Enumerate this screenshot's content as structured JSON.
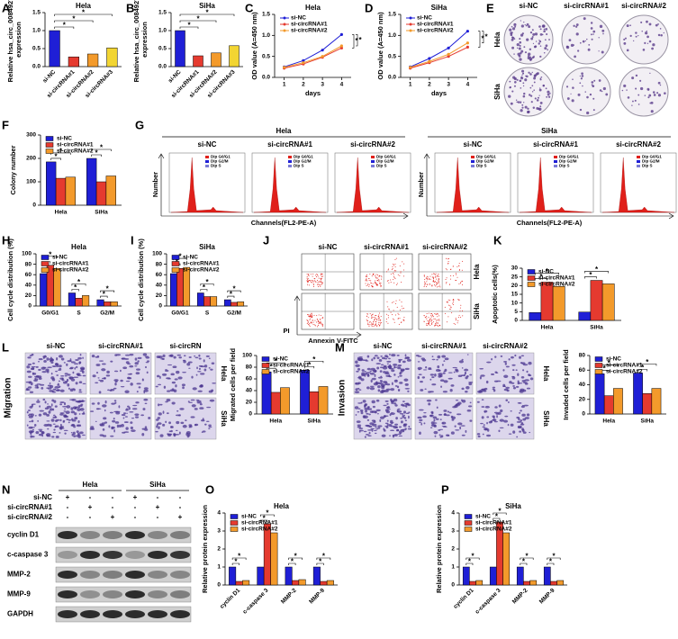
{
  "chart_data": [
    {
      "type": "bar",
      "panel": "A",
      "title": "Hela",
      "ylabel": [
        "Relative hsa_circ_0084927",
        "expression"
      ],
      "categories": [
        "si-NC",
        "si-circRNA#1",
        "si-circRNA#2",
        "si-circRNA#3"
      ],
      "values": [
        1.0,
        0.27,
        0.35,
        0.52
      ],
      "colors": [
        "#1f1fd6",
        "#e53a2f",
        "#f39a2b",
        "#f2d532"
      ],
      "ylim": [
        0,
        1.5
      ],
      "yticks": [
        {
          "value": 0,
          "label": "0.0"
        },
        {
          "value": 0.5,
          "label": "0.5"
        },
        {
          "value": 1,
          "label": "1.0"
        },
        {
          "value": 1.5,
          "label": "1.5"
        }
      ]
    },
    {
      "type": "bar",
      "panel": "B",
      "title": "SiHa",
      "ylabel": [
        "Relative hsa_circ_0084927",
        "expression"
      ],
      "categories": [
        "si-NC",
        "si-circRNA#1",
        "si-circRNA#2",
        "si-circRNA#3"
      ],
      "values": [
        1.0,
        0.3,
        0.38,
        0.58
      ],
      "colors": [
        "#1f1fd6",
        "#e53a2f",
        "#f39a2b",
        "#f2d532"
      ],
      "ylim": [
        0,
        1.5
      ],
      "yticks": [
        {
          "value": 0,
          "label": "0.0"
        },
        {
          "value": 0.5,
          "label": "0.5"
        },
        {
          "value": 1,
          "label": "1.0"
        },
        {
          "value": 1.5,
          "label": "1.5"
        }
      ]
    },
    {
      "type": "line",
      "panel": "C",
      "title": "Hela",
      "ylabel": "OD value (A=450 nm)",
      "xlabel": "days",
      "x": [
        1,
        2,
        3,
        4
      ],
      "xlim": [
        0.5,
        4.5
      ],
      "xticks": [
        1,
        2,
        3,
        4
      ],
      "ylim": [
        0,
        1.5
      ],
      "yticks": [
        {
          "value": 0,
          "label": "0.0"
        },
        {
          "value": 0.5,
          "label": "0.5"
        },
        {
          "value": 1,
          "label": "1.0"
        },
        {
          "value": 1.5,
          "label": "1.5"
        }
      ],
      "series": [
        {
          "name": "si-NC",
          "color": "#1f1fd6",
          "values": [
            0.25,
            0.4,
            0.65,
            1.02
          ]
        },
        {
          "name": "si-circRNA#1",
          "color": "#e53a2f",
          "values": [
            0.22,
            0.32,
            0.48,
            0.7
          ]
        },
        {
          "name": "si-circRNA#2",
          "color": "#f39a2b",
          "values": [
            0.24,
            0.35,
            0.5,
            0.75
          ]
        }
      ]
    },
    {
      "type": "line",
      "panel": "D",
      "title": "SiHa",
      "ylabel": "OD value (A=450 nm)",
      "xlabel": "days",
      "x": [
        1,
        2,
        3,
        4
      ],
      "xlim": [
        0.5,
        4.5
      ],
      "xticks": [
        1,
        2,
        3,
        4
      ],
      "ylim": [
        0,
        1.5
      ],
      "yticks": [
        {
          "value": 0,
          "label": "0.0"
        },
        {
          "value": 0.5,
          "label": "0.5"
        },
        {
          "value": 1,
          "label": "1.0"
        },
        {
          "value": 1.5,
          "label": "1.5"
        }
      ],
      "series": [
        {
          "name": "si-NC",
          "color": "#1f1fd6",
          "values": [
            0.25,
            0.45,
            0.7,
            1.1
          ]
        },
        {
          "name": "si-circRNA#1",
          "color": "#e53a2f",
          "values": [
            0.22,
            0.35,
            0.5,
            0.72
          ]
        },
        {
          "name": "si-circRNA#2",
          "color": "#f39a2b",
          "values": [
            0.24,
            0.38,
            0.55,
            0.82
          ]
        }
      ]
    },
    {
      "type": "bar",
      "panel": "F",
      "ylabel": "Colony number",
      "categories": [
        "Hela",
        "SiHa"
      ],
      "ylim": [
        0,
        300
      ],
      "yticks": [
        0,
        100,
        200,
        300
      ],
      "series": [
        {
          "name": "si-NC",
          "color": "#1f1fd6",
          "values": [
            185,
            200
          ]
        },
        {
          "name": "si-circRNA#1",
          "color": "#e53a2f",
          "values": [
            115,
            100
          ]
        },
        {
          "name": "si-circRNA#2",
          "color": "#f39a2b",
          "values": [
            120,
            125
          ]
        }
      ]
    },
    {
      "type": "bar",
      "panel": "H",
      "title": "Hela",
      "ylabel": "Cell cycle distribution (%)",
      "categories": [
        "G0/G1",
        "S",
        "G2/M"
      ],
      "ylim": [
        0,
        100
      ],
      "yticks": [
        0,
        20,
        40,
        60,
        80,
        100
      ],
      "series": [
        {
          "name": "si-NC",
          "color": "#1f1fd6",
          "values": [
            62,
            25,
            12
          ]
        },
        {
          "name": "si-circRNA#1",
          "color": "#e53a2f",
          "values": [
            78,
            15,
            8
          ]
        },
        {
          "name": "si-circRNA#2",
          "color": "#f39a2b",
          "values": [
            72,
            20,
            8
          ]
        }
      ]
    },
    {
      "type": "bar",
      "panel": "I",
      "title": "SiHa",
      "ylabel": "Cell cycle distribution (%)",
      "categories": [
        "G0/G1",
        "S",
        "G2/M"
      ],
      "ylim": [
        0,
        100
      ],
      "yticks": [
        0,
        20,
        40,
        60,
        80,
        100
      ],
      "series": [
        {
          "name": "si-NC",
          "color": "#1f1fd6",
          "values": [
            62,
            25,
            12
          ]
        },
        {
          "name": "si-circRNA#1",
          "color": "#e53a2f",
          "values": [
            72,
            18,
            7
          ]
        },
        {
          "name": "si-circRNA#2",
          "color": "#f39a2b",
          "values": [
            74,
            18,
            8
          ]
        }
      ]
    },
    {
      "type": "bar",
      "panel": "K",
      "ylabel": "Apoptotic cells(%)",
      "categories": [
        "Hela",
        "SiHa"
      ],
      "ylim": [
        0,
        30
      ],
      "yticks": [
        0,
        5,
        10,
        15,
        20,
        25,
        30
      ],
      "series": [
        {
          "name": "si-NC",
          "color": "#1f1fd6",
          "values": [
            4.5,
            4.8
          ]
        },
        {
          "name": "si-circRNA#1",
          "color": "#e53a2f",
          "values": [
            22,
            23
          ]
        },
        {
          "name": "si-circRNA#2",
          "color": "#f39a2b",
          "values": [
            19.5,
            21
          ]
        }
      ]
    },
    {
      "type": "bar",
      "ylabel": "Migrated cells per field",
      "categories": [
        "Hela",
        "SiHa"
      ],
      "ylim": [
        0,
        100
      ],
      "yticks": [
        0,
        20,
        40,
        60,
        80,
        100
      ],
      "series": [
        {
          "name": "si-NC",
          "color": "#1f1fd6",
          "values": [
            72,
            75
          ]
        },
        {
          "name": "si-circRNA#1",
          "color": "#e53a2f",
          "values": [
            37,
            38
          ]
        },
        {
          "name": "si-circRNA#2",
          "color": "#f39a2b",
          "values": [
            45,
            47
          ]
        }
      ]
    },
    {
      "type": "bar",
      "ylabel": "Invaded cells per field",
      "categories": [
        "Hela",
        "SiHa"
      ],
      "ylim": [
        0,
        80
      ],
      "yticks": [
        0,
        20,
        40,
        60,
        80
      ],
      "series": [
        {
          "name": "si-NC",
          "color": "#1f1fd6",
          "values": [
            55,
            56
          ]
        },
        {
          "name": "si-circRNA#1",
          "color": "#e53a2f",
          "values": [
            25,
            28
          ]
        },
        {
          "name": "si-circRNA#2",
          "color": "#f39a2b",
          "values": [
            35,
            35
          ]
        }
      ]
    },
    {
      "type": "bar",
      "panel": "O",
      "title": "Hela",
      "ylabel": "Relative protein expression",
      "categories": [
        "cyclin D1",
        "c-caspase 3",
        "MMP-2",
        "MMP-9"
      ],
      "ylim": [
        0,
        4
      ],
      "yticks": [
        0,
        1,
        2,
        3,
        4
      ],
      "series": [
        {
          "name": "si-NC",
          "color": "#1f1fd6",
          "values": [
            1,
            1,
            1,
            1
          ]
        },
        {
          "name": "si-circRNA#1",
          "color": "#e53a2f",
          "values": [
            0.2,
            3.4,
            0.25,
            0.2
          ]
        },
        {
          "name": "si-circRNA#2",
          "color": "#f39a2b",
          "values": [
            0.25,
            2.9,
            0.3,
            0.25
          ]
        }
      ]
    },
    {
      "type": "bar",
      "panel": "P",
      "title": "SiHa",
      "ylabel": "Relative protein expression",
      "categories": [
        "cyclin D1",
        "c-caspase 3",
        "MMP-2",
        "MMP-9"
      ],
      "ylim": [
        0,
        4
      ],
      "yticks": [
        0,
        1,
        2,
        3,
        4
      ],
      "series": [
        {
          "name": "si-NC",
          "color": "#1f1fd6",
          "values": [
            1,
            1,
            1,
            1
          ]
        },
        {
          "name": "si-circRNA#1",
          "color": "#e53a2f",
          "values": [
            0.2,
            3.5,
            0.2,
            0.2
          ]
        },
        {
          "name": "si-circRNA#2",
          "color": "#f39a2b",
          "values": [
            0.25,
            2.9,
            0.25,
            0.25
          ]
        }
      ]
    }
  ],
  "significance": "*",
  "colony_images": {
    "panel": "E",
    "columns": [
      "si-NC",
      "si-circRNA#1",
      "si-circRNA#2"
    ],
    "rows": [
      "Hela",
      "SiHa"
    ]
  },
  "flow_cytometry": {
    "panel": "G",
    "groups": [
      "Hela",
      "SiHa"
    ],
    "columns": [
      "si-NC",
      "si-circRNA#1",
      "si-circRNA#2"
    ],
    "y_label": "Number",
    "x_label": "Channels(FL2-PE-A)",
    "legend": [
      "Dip G0/G1",
      "Dip G2/M",
      "Dip S"
    ]
  },
  "apoptosis_plots": {
    "panel": "J",
    "columns": [
      "si-NC",
      "si-circRNA#1",
      "si-circRNA#2"
    ],
    "rows": [
      "Hela",
      "SiHa"
    ],
    "y_label": "PI",
    "x_label": "Annexin V-FITC"
  },
  "migration_images": {
    "panel": "L",
    "side_label": "Migration",
    "columns": [
      "si-NC",
      "si-circRNA#1",
      "si-circRN"
    ],
    "rows": [
      "Hela",
      "SiHa"
    ]
  },
  "invasion_images": {
    "panel": "M",
    "side_label": "Invasion",
    "columns": [
      "si-NC",
      "si-circRNA#1",
      "si-circRNA#2"
    ],
    "rows": [
      "Hela",
      "SiHa"
    ]
  },
  "western_blot": {
    "panel": "N",
    "cell_lines": [
      "Hela",
      "SiHa"
    ],
    "conditions": [
      "si-NC",
      "si-circRNA#1",
      "si-circRNA#2"
    ],
    "signs": [
      [
        "+",
        "-",
        "-",
        "+",
        "-",
        "-"
      ],
      [
        "-",
        "+",
        "-",
        "-",
        "+",
        "-"
      ],
      [
        "-",
        "-",
        "+",
        "-",
        "-",
        "+"
      ]
    ],
    "proteins": [
      "cyclin D1",
      "c-caspase 3",
      "MMP-2",
      "MMP-9",
      "GAPDH"
    ]
  }
}
